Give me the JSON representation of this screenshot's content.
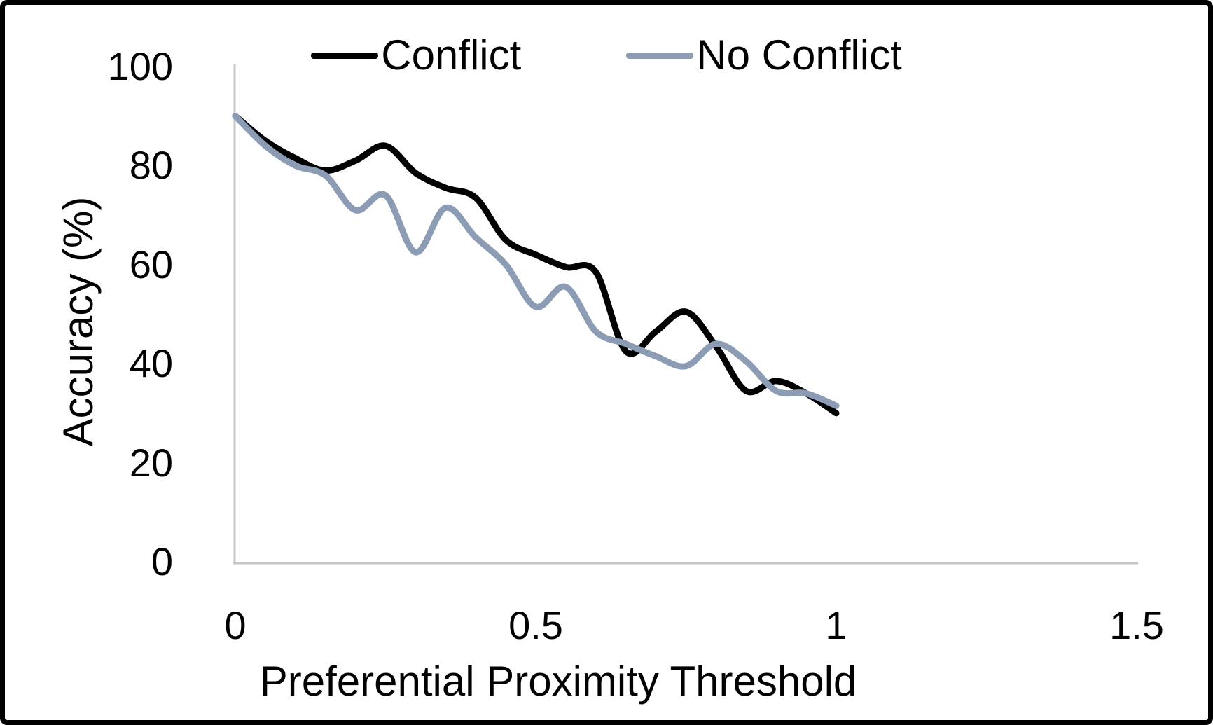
{
  "frame": {
    "border_color": "#000000",
    "background_color": "#ffffff"
  },
  "chart_data": {
    "type": "line",
    "title": "",
    "xlabel": "Preferential Proximity Threshold",
    "ylabel": "Accuracy (%)",
    "xlim": [
      0,
      1.5
    ],
    "ylim": [
      0,
      100
    ],
    "x_tick_labels": [
      "0",
      "0.5",
      "1",
      "1.5"
    ],
    "x_tick_values": [
      0,
      0.5,
      1,
      1.5
    ],
    "y_tick_labels": [
      "0",
      "20",
      "40",
      "60",
      "80",
      "100"
    ],
    "y_tick_values": [
      0,
      20,
      40,
      60,
      80,
      100
    ],
    "grid": false,
    "legend_position": "top-center",
    "axis_color": "#c6c6c6",
    "text_color": "#000000",
    "line_smoothing": true,
    "x": [
      0,
      0.05,
      0.1,
      0.15,
      0.2,
      0.25,
      0.3,
      0.35,
      0.4,
      0.45,
      0.5,
      0.55,
      0.6,
      0.65,
      0.7,
      0.75,
      0.8,
      0.85,
      0.9,
      0.95,
      1.0
    ],
    "series": [
      {
        "name": "Conflict",
        "color": "#000000",
        "values": [
          90,
          85,
          81.5,
          79,
          81,
          84,
          78.5,
          75.5,
          73.5,
          65,
          62,
          59.5,
          58.5,
          42.5,
          46.5,
          50.5,
          43.5,
          34.5,
          36.5,
          34,
          30
        ]
      },
      {
        "name": "No Conflict",
        "color": "#8c9cb4",
        "values": [
          90,
          84,
          80,
          78,
          71,
          74,
          62.5,
          71.5,
          65.5,
          60,
          51.5,
          55.5,
          46.5,
          44,
          41.5,
          39.5,
          44,
          40.5,
          34.5,
          34,
          31.5
        ]
      }
    ]
  }
}
